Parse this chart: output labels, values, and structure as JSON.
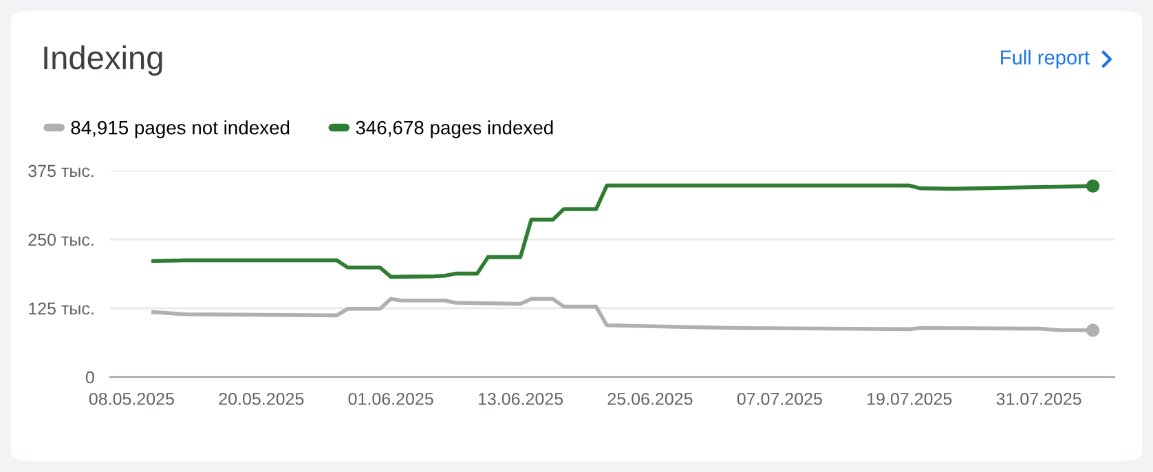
{
  "chart_data": {
    "type": "line",
    "title": "Indexing",
    "annotations": [
      "Full report"
    ],
    "series": [
      {
        "name": "84,915 pages not indexed",
        "color": "#b0b0b0",
        "x": [
          "2025-05-10",
          "2025-05-13",
          "2025-05-27",
          "2025-05-28",
          "2025-05-31",
          "2025-06-01",
          "2025-06-02",
          "2025-06-06",
          "2025-06-07",
          "2025-06-13",
          "2025-06-14",
          "2025-06-16",
          "2025-06-17",
          "2025-06-20",
          "2025-06-21",
          "2025-07-03",
          "2025-07-19",
          "2025-07-20",
          "2025-07-31",
          "2025-08-02",
          "2025-08-05"
        ],
        "values": [
          118,
          114,
          112,
          124,
          124,
          142,
          139,
          139,
          135,
          133,
          142,
          142,
          128,
          128,
          94,
          89,
          87,
          89,
          88,
          85,
          85
        ]
      },
      {
        "name": "346,678 pages indexed",
        "color": "#2e7d32",
        "x": [
          "2025-05-10",
          "2025-05-13",
          "2025-05-27",
          "2025-05-28",
          "2025-05-31",
          "2025-06-01",
          "2025-06-05",
          "2025-06-06",
          "2025-06-07",
          "2025-06-09",
          "2025-06-10",
          "2025-06-13",
          "2025-06-14",
          "2025-06-16",
          "2025-06-17",
          "2025-06-20",
          "2025-06-21",
          "2025-07-19",
          "2025-07-20",
          "2025-07-23",
          "2025-08-05"
        ],
        "values": [
          211,
          212,
          212,
          199,
          199,
          182,
          183,
          184,
          188,
          188,
          218,
          218,
          286,
          286,
          305,
          305,
          348,
          348,
          343,
          342,
          347
        ]
      }
    ],
    "xlim": [
      "2025-05-06",
      "2025-08-07"
    ],
    "xticks": [
      {
        "value": "2025-05-08",
        "label": "08.05.2025"
      },
      {
        "value": "2025-05-20",
        "label": "20.05.2025"
      },
      {
        "value": "2025-06-01",
        "label": "01.06.2025"
      },
      {
        "value": "2025-06-13",
        "label": "13.06.2025"
      },
      {
        "value": "2025-06-25",
        "label": "25.06.2025"
      },
      {
        "value": "2025-07-07",
        "label": "07.07.2025"
      },
      {
        "value": "2025-07-19",
        "label": "19.07.2025"
      },
      {
        "value": "2025-07-31",
        "label": "31.07.2025"
      }
    ],
    "ylim": [
      0,
      375
    ],
    "yticks": [
      0,
      {
        "value": 125,
        "label": "125 тыс."
      },
      {
        "value": 250,
        "label": "250 тыс."
      },
      {
        "value": 375,
        "label": "375 тыс."
      }
    ],
    "grid": "y",
    "legend": "top left",
    "line_style": "solid"
  }
}
